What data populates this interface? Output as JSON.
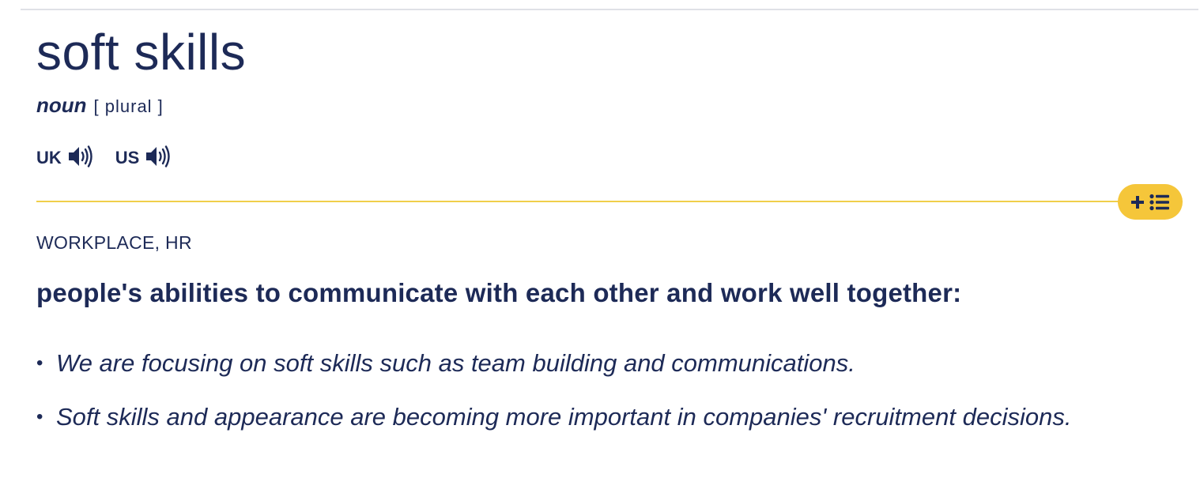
{
  "entry": {
    "headword": "soft skills",
    "part_of_speech": "noun",
    "grammar": "[ plural ]",
    "pronunciations": [
      {
        "label": "UK",
        "icon": "speaker-icon"
      },
      {
        "label": "US",
        "icon": "speaker-icon"
      }
    ],
    "add_to_list": {
      "icons": [
        "plus-icon",
        "list-icon"
      ]
    },
    "domain": "WORKPLACE, HR",
    "definition": "people's abilities to communicate with each other and work well together:",
    "examples": [
      "We are focusing on soft skills such as team building and communications.",
      "Soft skills and appearance are becoming more important in companies' recruitment decisions."
    ],
    "bullet": "•"
  },
  "colors": {
    "text": "#1d2a57",
    "accent_line": "#f0cf4a",
    "button_bg": "#f5c63a",
    "top_rule": "#dfe1e6"
  }
}
